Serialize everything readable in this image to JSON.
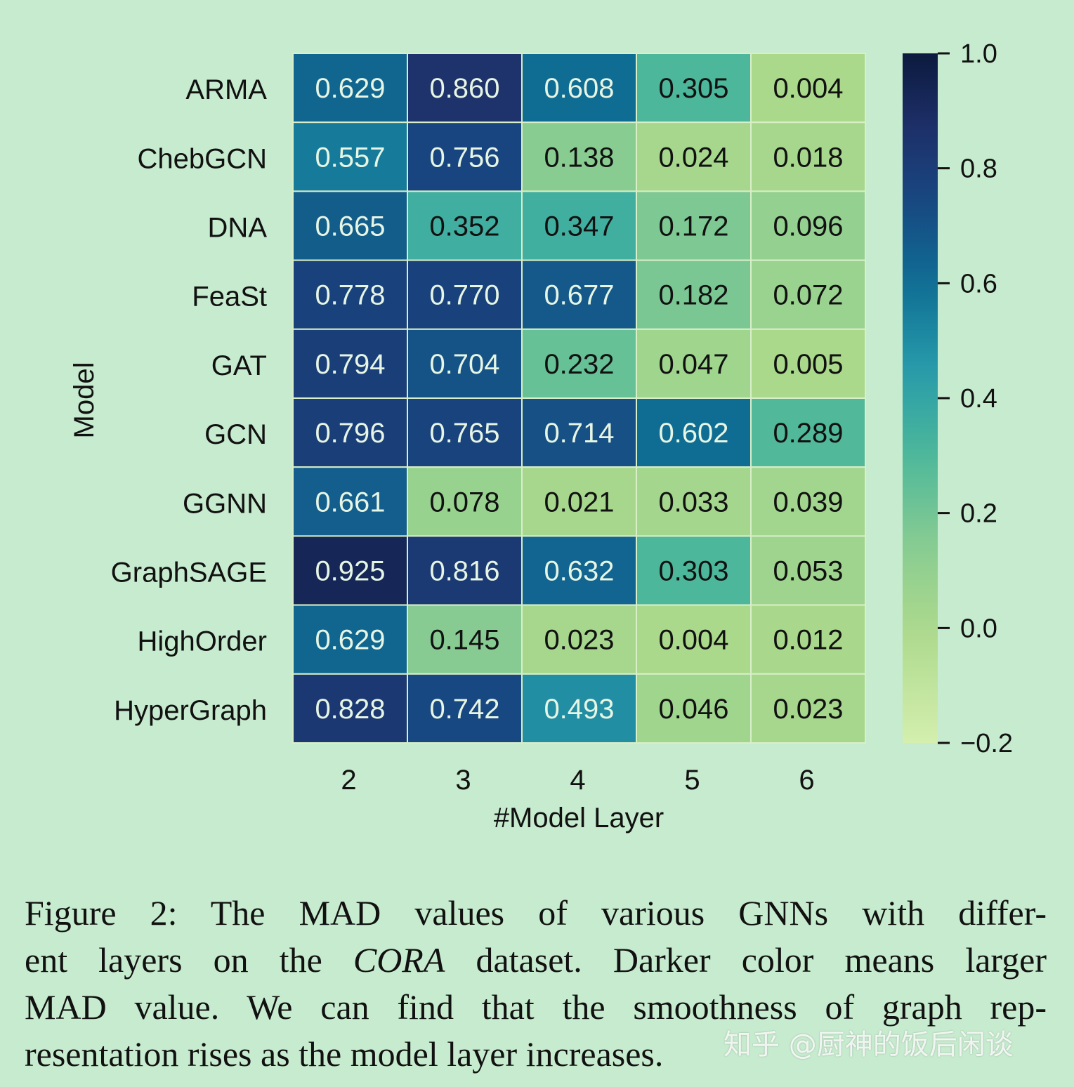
{
  "chart_data": {
    "type": "heatmap",
    "xlabel": "#Model Layer",
    "ylabel": "Model",
    "x_categories": [
      "2",
      "3",
      "4",
      "5",
      "6"
    ],
    "y_categories": [
      "ARMA",
      "ChebGCN",
      "DNA",
      "FeaSt",
      "GAT",
      "GCN",
      "GGNN",
      "GraphSAGE",
      "HighOrder",
      "HyperGraph"
    ],
    "values": [
      [
        0.629,
        0.86,
        0.608,
        0.305,
        0.004
      ],
      [
        0.557,
        0.756,
        0.138,
        0.024,
        0.018
      ],
      [
        0.665,
        0.352,
        0.347,
        0.172,
        0.096
      ],
      [
        0.778,
        0.77,
        0.677,
        0.182,
        0.072
      ],
      [
        0.794,
        0.704,
        0.232,
        0.047,
        0.005
      ],
      [
        0.796,
        0.765,
        0.714,
        0.602,
        0.289
      ],
      [
        0.661,
        0.078,
        0.021,
        0.033,
        0.039
      ],
      [
        0.925,
        0.816,
        0.632,
        0.303,
        0.053
      ],
      [
        0.629,
        0.145,
        0.023,
        0.004,
        0.012
      ],
      [
        0.828,
        0.742,
        0.493,
        0.046,
        0.023
      ]
    ],
    "colormap": "YlGnBu",
    "colorbar": {
      "range": [
        -0.2,
        1.0
      ],
      "ticks": [
        "1.0",
        "0.8",
        "0.6",
        "0.4",
        "0.2",
        "0.0",
        "−0.2"
      ],
      "tick_values": [
        1.0,
        0.8,
        0.6,
        0.4,
        0.2,
        0.0,
        -0.2
      ]
    },
    "annotations_format": "0.000"
  },
  "caption": {
    "lines": [
      [
        "Figure 2: The MAD values of various GNNs with differ-"
      ],
      [
        "ent layers on the ",
        "CORA",
        " dataset. Darker color means larger"
      ],
      [
        "MAD value. We can find that the smoothness of graph rep-"
      ],
      [
        "resentation rises as the model layer increases."
      ]
    ]
  },
  "watermark": "知乎 @厨神的饭后闲谈",
  "colors": {
    "background": "#c7ebce"
  }
}
